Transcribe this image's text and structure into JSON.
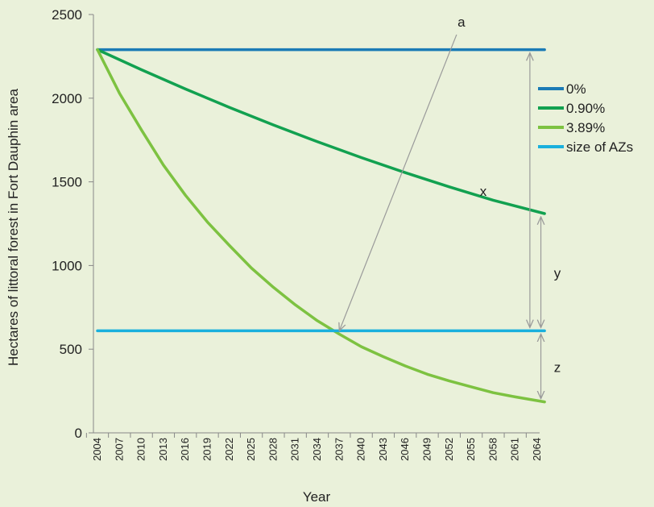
{
  "chart_data": {
    "type": "line",
    "title": "",
    "xlabel": "Year",
    "ylabel": "Hectares of littoral forest in Fort Dauphin area",
    "xlim": [
      2004,
      2065
    ],
    "ylim": [
      0,
      2500
    ],
    "yticks": [
      0,
      500,
      1000,
      1500,
      2000,
      2500
    ],
    "xticks": [
      2004,
      2007,
      2010,
      2013,
      2016,
      2019,
      2022,
      2025,
      2028,
      2031,
      2034,
      2037,
      2040,
      2043,
      2046,
      2049,
      2052,
      2055,
      2058,
      2061,
      2064
    ],
    "grid": false,
    "legend_position": "right",
    "series": [
      {
        "name": "0%",
        "color": "#1b7bb5",
        "x": [
          2004,
          2065
        ],
        "values": [
          2290,
          2290
        ]
      },
      {
        "name": "0.90%",
        "color": "#12a150",
        "x": [
          2004,
          2010,
          2016,
          2022,
          2028,
          2034,
          2040,
          2046,
          2052,
          2058,
          2065
        ],
        "values": [
          2290,
          2170,
          2055,
          1945,
          1840,
          1740,
          1645,
          1555,
          1470,
          1390,
          1310
        ]
      },
      {
        "name": "3.89%",
        "color": "#7dc241",
        "x": [
          2004,
          2007,
          2010,
          2013,
          2016,
          2019,
          2022,
          2025,
          2028,
          2031,
          2034,
          2037,
          2040,
          2043,
          2046,
          2049,
          2052,
          2055,
          2058,
          2061,
          2065
        ],
        "values": [
          2290,
          2030,
          1810,
          1600,
          1420,
          1260,
          1120,
          985,
          870,
          765,
          670,
          590,
          515,
          455,
          400,
          350,
          310,
          275,
          240,
          215,
          185
        ]
      },
      {
        "name": "size of AZs",
        "color": "#1ab0dd",
        "x": [
          2004,
          2065
        ],
        "values": [
          610,
          610
        ]
      }
    ],
    "annotations": [
      {
        "label": "a",
        "type": "arrow",
        "from": [
          2053,
          2380
        ],
        "to": [
          2037,
          610
        ]
      },
      {
        "label": "x",
        "type": "double-arrow",
        "x": 2063,
        "from": 2290,
        "to": 610
      },
      {
        "label": "y",
        "type": "double-arrow",
        "x": 2064.5,
        "from": 1310,
        "to": 610
      },
      {
        "label": "z",
        "type": "double-arrow",
        "x": 2064.5,
        "from": 610,
        "to": 185
      }
    ]
  }
}
